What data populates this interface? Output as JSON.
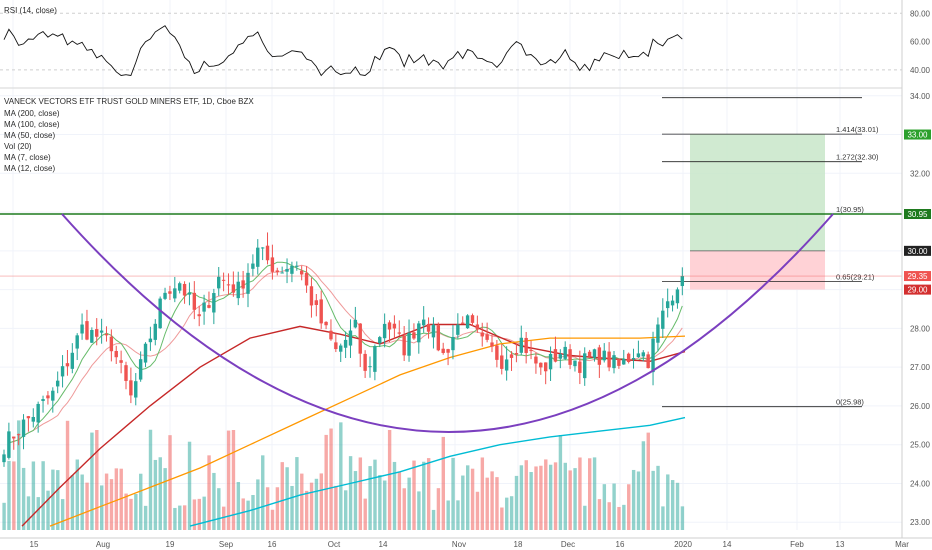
{
  "rsi_panel": {
    "title": "RSI (14, close)",
    "ticks": [
      "80.00",
      "60.00",
      "40.00"
    ],
    "tick_values": [
      80,
      60,
      40
    ]
  },
  "legend": {
    "symbol": "VANECK VECTORS ETF TRUST GOLD MINERS ETF, 1D, Cboe BZX",
    "indicators": [
      "MA (200, close)",
      "MA (100, close)",
      "MA (50, close)",
      "Vol (20)",
      "MA (7, close)",
      "MA (12, close)"
    ]
  },
  "price_axis": {
    "ticks": [
      "34.00",
      "33.00",
      "32.00",
      "31.00",
      "30.00",
      "29.00",
      "28.00",
      "27.00",
      "26.00",
      "25.00",
      "24.00",
      "23.00"
    ],
    "tick_values": [
      34,
      33,
      32,
      31,
      30,
      29,
      28,
      27,
      26,
      25,
      24,
      23
    ]
  },
  "time_axis": {
    "labels": [
      "15",
      "Aug",
      "19",
      "Sep",
      "16",
      "Oct",
      "14",
      "Nov",
      "18",
      "Dec",
      "16",
      "2020",
      "14",
      "Feb",
      "13",
      "Mar"
    ]
  },
  "price_labels": [
    {
      "text": "33.00",
      "value": 33.0,
      "color": "#2ca02c"
    },
    {
      "text": "30.95",
      "value": 30.95,
      "color": "#1e7a1e"
    },
    {
      "text": "30.00",
      "value": 30.0,
      "color": "#222222"
    },
    {
      "text": "29.35",
      "value": 29.35,
      "color": "#ef5350"
    },
    {
      "text": "29.00",
      "value": 29.0,
      "color": "#d32f2f"
    }
  ],
  "fib_levels": [
    {
      "label": "1.414(33.01)",
      "value": 33.01
    },
    {
      "label": "1.272(32.30)",
      "value": 32.3
    },
    {
      "label": "1(30.95)",
      "value": 30.95
    },
    {
      "label": "0.65(29.21)",
      "value": 29.21
    },
    {
      "label": "0(25.98)",
      "value": 25.98
    }
  ],
  "chart_data": {
    "type": "candlestick",
    "title": "VANECK VECTORS ETF TRUST GOLD MINERS ETF, 1D, Cboe BZX",
    "ylim": [
      22.8,
      34.2
    ],
    "rsi_ylim": [
      30,
      88
    ],
    "resistance": 30.95,
    "current_price": 29.35,
    "target": 33.0,
    "stop": 29.0,
    "entry": 30.0,
    "colors": {
      "up": "#26a69a",
      "down": "#ef5350",
      "ma200": "#00bcd4",
      "ma100": "#ff9800",
      "ma50": "#c62828",
      "ma7": "#66bb6a",
      "ma12": "#ef9a9a",
      "arc": "#7b3fbf",
      "resistance": "#1e7a1e"
    }
  }
}
